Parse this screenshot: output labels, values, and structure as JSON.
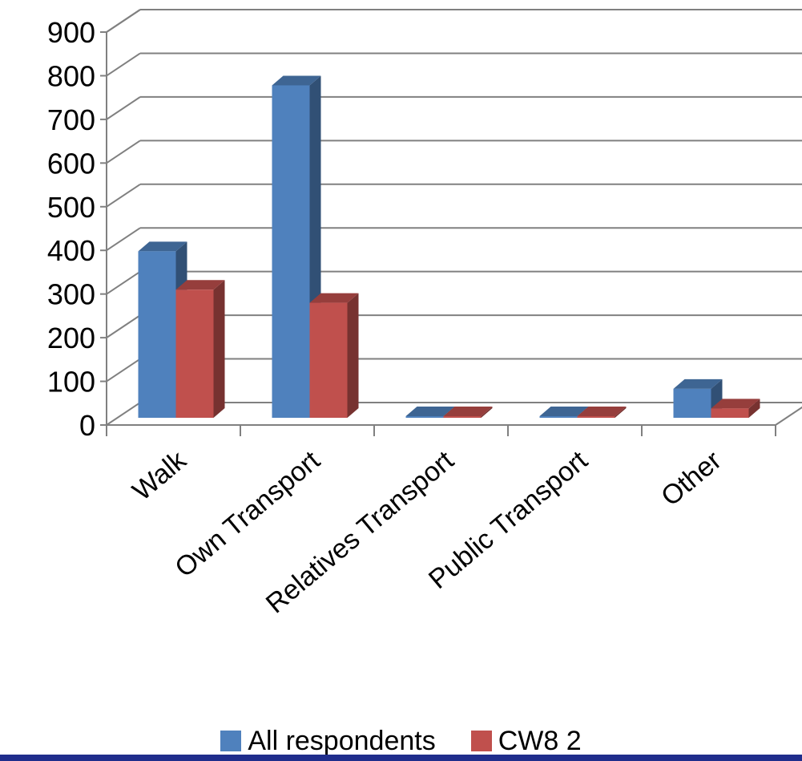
{
  "chart_data": {
    "type": "bar",
    "style": "3d-clustered-column",
    "categories": [
      "Walk",
      "Own Transport",
      "Relatives Transport",
      "Public Transport",
      "Other"
    ],
    "series": [
      {
        "name": "All respondents",
        "values": [
          420,
          800,
          20,
          28,
          105
        ],
        "color": "#4f81bd"
      },
      {
        "name": "CW8 2",
        "values": [
          332,
          302,
          14,
          5,
          60
        ],
        "color": "#c0504d"
      }
    ],
    "ylim": [
      0,
      900
    ],
    "yticks": [
      "0",
      "100",
      "200",
      "300",
      "400",
      "500",
      "600",
      "700",
      "800",
      "900"
    ],
    "title": "",
    "xlabel": "",
    "ylabel": "",
    "grid": true,
    "legend": "bottom"
  },
  "legend": {
    "items": [
      {
        "label": "All respondents",
        "color": "#4f81bd"
      },
      {
        "label": "CW8 2",
        "color": "#c0504d"
      }
    ]
  },
  "frame": {
    "bottom_rule_color": "#1f2d8c"
  }
}
